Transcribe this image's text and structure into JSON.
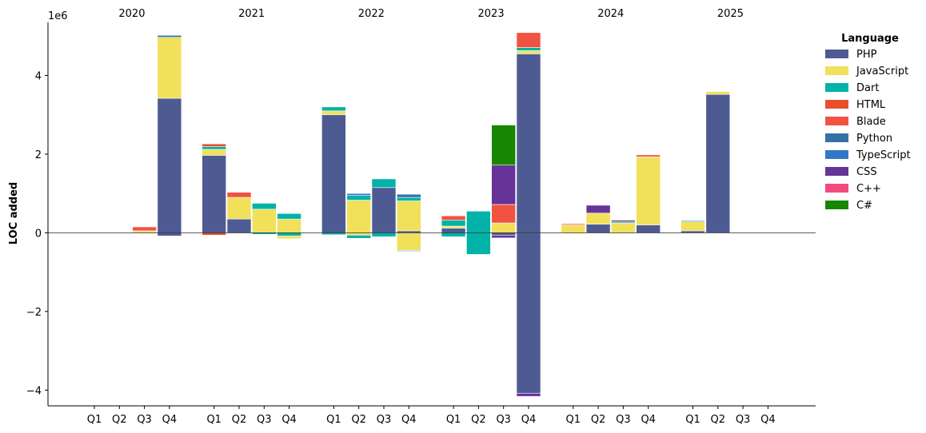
{
  "chart_data": {
    "type": "bar",
    "stacked": true,
    "ylabel": "LOC added",
    "xlabel": "",
    "offset_text": "1e6",
    "scale": 1000000,
    "ylim": [
      -4.4,
      5.35
    ],
    "yticks": [
      -4,
      -2,
      0,
      2,
      4
    ],
    "ytick_labels": [
      "−4",
      "−2",
      "0",
      "2",
      "4"
    ],
    "legend_title": "Language",
    "legend_position": "top-right, outside plot",
    "years": [
      "2020",
      "2021",
      "2022",
      "2023",
      "2024",
      "2025"
    ],
    "quarters": [
      "Q1",
      "Q2",
      "Q3",
      "Q4"
    ],
    "languages": [
      {
        "name": "PHP",
        "color": "#4e5b93"
      },
      {
        "name": "JavaScript",
        "color": "#f0e05a"
      },
      {
        "name": "Dart",
        "color": "#00b2a7"
      },
      {
        "name": "HTML",
        "color": "#e94e2d"
      },
      {
        "name": "Blade",
        "color": "#f25242"
      },
      {
        "name": "Python",
        "color": "#3472a5"
      },
      {
        "name": "TypeScript",
        "color": "#3277c5"
      },
      {
        "name": "CSS",
        "color": "#663399"
      },
      {
        "name": "C++",
        "color": "#f34b7d"
      },
      {
        "name": "C#",
        "color": "#178600"
      }
    ],
    "bars": [
      {
        "year": "2020",
        "quarter": "Q3",
        "segments": [
          {
            "lang": "JavaScript",
            "value": 0.05
          },
          {
            "lang": "Blade",
            "value": 0.1
          }
        ]
      },
      {
        "year": "2020",
        "quarter": "Q4",
        "segments": [
          {
            "lang": "PHP",
            "value": 3.42
          },
          {
            "lang": "JavaScript",
            "value": 1.55
          },
          {
            "lang": "Python",
            "value": 0.05
          },
          {
            "lang": "PHP",
            "value": -0.08
          }
        ]
      },
      {
        "year": "2021",
        "quarter": "Q1",
        "segments": [
          {
            "lang": "PHP",
            "value": 1.97
          },
          {
            "lang": "JavaScript",
            "value": 0.15
          },
          {
            "lang": "Dart",
            "value": 0.07
          },
          {
            "lang": "HTML",
            "value": 0.07
          },
          {
            "lang": "HTML",
            "value": -0.06
          }
        ]
      },
      {
        "year": "2021",
        "quarter": "Q2",
        "segments": [
          {
            "lang": "PHP",
            "value": 0.35
          },
          {
            "lang": "JavaScript",
            "value": 0.55
          },
          {
            "lang": "Blade",
            "value": 0.13
          }
        ]
      },
      {
        "year": "2021",
        "quarter": "Q3",
        "segments": [
          {
            "lang": "JavaScript",
            "value": 0.6
          },
          {
            "lang": "Dart",
            "value": 0.15
          },
          {
            "lang": "Dart",
            "value": -0.04
          }
        ]
      },
      {
        "year": "2021",
        "quarter": "Q4",
        "segments": [
          {
            "lang": "JavaScript",
            "value": 0.35
          },
          {
            "lang": "Dart",
            "value": 0.14
          },
          {
            "lang": "Dart",
            "value": -0.08
          },
          {
            "lang": "JavaScript",
            "value": -0.07
          }
        ]
      },
      {
        "year": "2022",
        "quarter": "Q1",
        "segments": [
          {
            "lang": "PHP",
            "value": 3.0
          },
          {
            "lang": "JavaScript",
            "value": 0.1
          },
          {
            "lang": "Dart",
            "value": 0.1
          },
          {
            "lang": "Dart",
            "value": -0.05
          }
        ]
      },
      {
        "year": "2022",
        "quarter": "Q2",
        "segments": [
          {
            "lang": "JavaScript",
            "value": 0.83
          },
          {
            "lang": "Dart",
            "value": 0.12
          },
          {
            "lang": "TypeScript",
            "value": 0.05
          },
          {
            "lang": "JavaScript",
            "value": -0.06
          },
          {
            "lang": "Dart",
            "value": -0.08
          }
        ]
      },
      {
        "year": "2022",
        "quarter": "Q3",
        "segments": [
          {
            "lang": "PHP",
            "value": 1.15
          },
          {
            "lang": "Dart",
            "value": 0.22
          },
          {
            "lang": "Dart",
            "value": -0.1
          }
        ]
      },
      {
        "year": "2022",
        "quarter": "Q4",
        "segments": [
          {
            "lang": "PHP",
            "value": 0.05
          },
          {
            "lang": "JavaScript",
            "value": 0.76
          },
          {
            "lang": "Dart",
            "value": 0.09
          },
          {
            "lang": "Python",
            "value": 0.08
          },
          {
            "lang": "JavaScript",
            "value": -0.45
          },
          {
            "lang": "TypeScript",
            "value": -0.02
          }
        ]
      },
      {
        "year": "2023",
        "quarter": "Q1",
        "segments": [
          {
            "lang": "PHP",
            "value": 0.12
          },
          {
            "lang": "JavaScript",
            "value": 0.05
          },
          {
            "lang": "Dart",
            "value": 0.15
          },
          {
            "lang": "Blade",
            "value": 0.11
          },
          {
            "lang": "Dart",
            "value": -0.1
          }
        ]
      },
      {
        "year": "2023",
        "quarter": "Q2",
        "segments": [
          {
            "lang": "Dart",
            "value": 0.55
          },
          {
            "lang": "Dart",
            "value": -0.55
          }
        ]
      },
      {
        "year": "2023",
        "quarter": "Q3",
        "segments": [
          {
            "lang": "JavaScript",
            "value": 0.25
          },
          {
            "lang": "Blade",
            "value": 0.47
          },
          {
            "lang": "CSS",
            "value": 1.0
          },
          {
            "lang": "C#",
            "value": 1.02
          },
          {
            "lang": "PHP",
            "value": -0.06
          },
          {
            "lang": "CSS",
            "value": -0.07
          }
        ]
      },
      {
        "year": "2023",
        "quarter": "Q4",
        "segments": [
          {
            "lang": "PHP",
            "value": 4.55
          },
          {
            "lang": "JavaScript",
            "value": 0.08
          },
          {
            "lang": "Dart",
            "value": 0.08
          },
          {
            "lang": "Blade",
            "value": 0.38
          },
          {
            "lang": "PHP",
            "value": -4.08
          },
          {
            "lang": "CSS",
            "value": -0.08
          }
        ]
      },
      {
        "year": "2024",
        "quarter": "Q1",
        "segments": [
          {
            "lang": "JavaScript",
            "value": 0.2
          },
          {
            "lang": "Blade",
            "value": 0.03
          }
        ]
      },
      {
        "year": "2024",
        "quarter": "Q2",
        "segments": [
          {
            "lang": "PHP",
            "value": 0.22
          },
          {
            "lang": "JavaScript",
            "value": 0.28
          },
          {
            "lang": "CSS",
            "value": 0.2
          }
        ]
      },
      {
        "year": "2024",
        "quarter": "Q3",
        "segments": [
          {
            "lang": "JavaScript",
            "value": 0.25
          },
          {
            "lang": "Dart",
            "value": 0.03
          },
          {
            "lang": "CSS",
            "value": 0.04
          }
        ]
      },
      {
        "year": "2024",
        "quarter": "Q4",
        "segments": [
          {
            "lang": "PHP",
            "value": 0.2
          },
          {
            "lang": "JavaScript",
            "value": 1.73
          },
          {
            "lang": "Blade",
            "value": 0.05
          }
        ]
      },
      {
        "year": "2025",
        "quarter": "Q1",
        "segments": [
          {
            "lang": "PHP",
            "value": 0.05
          },
          {
            "lang": "JavaScript",
            "value": 0.23
          },
          {
            "lang": "Dart",
            "value": 0.02
          },
          {
            "lang": "PHP",
            "value": 0.02
          }
        ]
      },
      {
        "year": "2025",
        "quarter": "Q2",
        "segments": [
          {
            "lang": "PHP",
            "value": 3.52
          },
          {
            "lang": "JavaScript",
            "value": 0.07
          }
        ]
      }
    ]
  }
}
